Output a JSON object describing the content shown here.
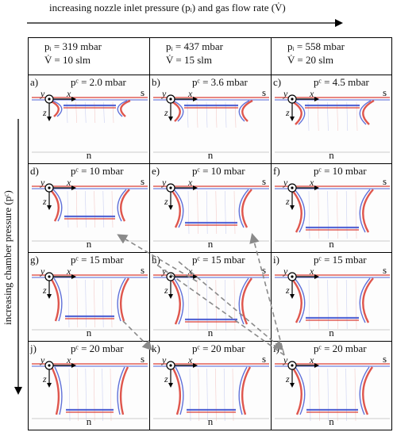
{
  "top_axis_label": "increasing nozzle inlet pressure (pᵢ) and gas flow rate (V̇)",
  "left_axis_label": "increasing chamber pressure (pᶜ)",
  "columns": [
    {
      "p_line": "pᵢ = 319 mbar",
      "v_line": "V̇ = 10 slm"
    },
    {
      "p_line": "pᵢ = 437 mbar",
      "v_line": "V̇ = 15 slm"
    },
    {
      "p_line": "pᵢ = 558 mbar",
      "v_line": "V̇ = 20 slm"
    }
  ],
  "panels": [
    {
      "label": "a)",
      "pc": "pᶜ = 2.0 mbar"
    },
    {
      "label": "b)",
      "pc": "pᶜ = 3.6 mbar"
    },
    {
      "label": "c)",
      "pc": "pᶜ = 4.5 mbar"
    },
    {
      "label": "d)",
      "pc": "pᶜ = 10 mbar"
    },
    {
      "label": "e)",
      "pc": "pᶜ = 10 mbar"
    },
    {
      "label": "f)",
      "pc": "pᶜ = 10 mbar"
    },
    {
      "label": "g)",
      "pc": "pᶜ = 15 mbar"
    },
    {
      "label": "h)",
      "pc": "pᶜ = 15 mbar"
    },
    {
      "label": "i)",
      "pc": "pᶜ = 15 mbar"
    },
    {
      "label": "j)",
      "pc": "pᶜ = 20 mbar"
    },
    {
      "label": "k)",
      "pc": "pᶜ = 20 mbar"
    },
    {
      "label": "l)",
      "pc": "pᶜ = 20 mbar"
    }
  ],
  "panel_markers": {
    "s": "s",
    "n": "n",
    "y": "y",
    "x": "x",
    "z": "z"
  },
  "colors": {
    "red": "#d9382e",
    "blue": "#3a4fd0",
    "border": "#000000",
    "dash": "#8a8a8a"
  }
}
